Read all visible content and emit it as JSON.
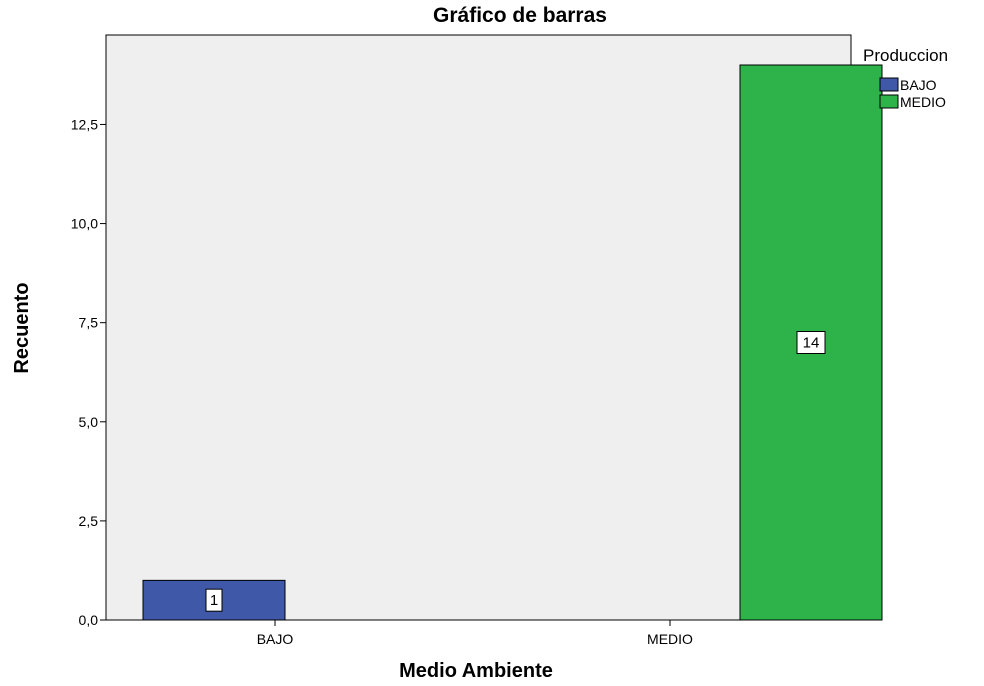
{
  "chart_data": {
    "type": "bar",
    "title": "Gráfico de barras",
    "xlabel": "Medio Ambiente",
    "ylabel": "Recuento",
    "categories": [
      "BAJO",
      "MEDIO"
    ],
    "series": [
      {
        "name": "BAJO",
        "values": [
          1,
          null
        ],
        "color": "#3f58a8"
      },
      {
        "name": "MEDIO",
        "values": [
          null,
          14
        ],
        "color": "#2db34a"
      }
    ],
    "ylim": [
      0,
      15
    ],
    "yticks": [
      0,
      2.5,
      5,
      7.5,
      10,
      12.5
    ],
    "ytick_labels": [
      "0,0",
      "2,5",
      "5,0",
      "7,5",
      "10,0",
      "12,5"
    ],
    "data_labels": [
      "1",
      "14"
    ],
    "legend": {
      "title": "Produccion",
      "entries": [
        "BAJO",
        "MEDIO"
      ],
      "placement": "top-right"
    },
    "grid": false,
    "plot_background": "#efefef"
  }
}
